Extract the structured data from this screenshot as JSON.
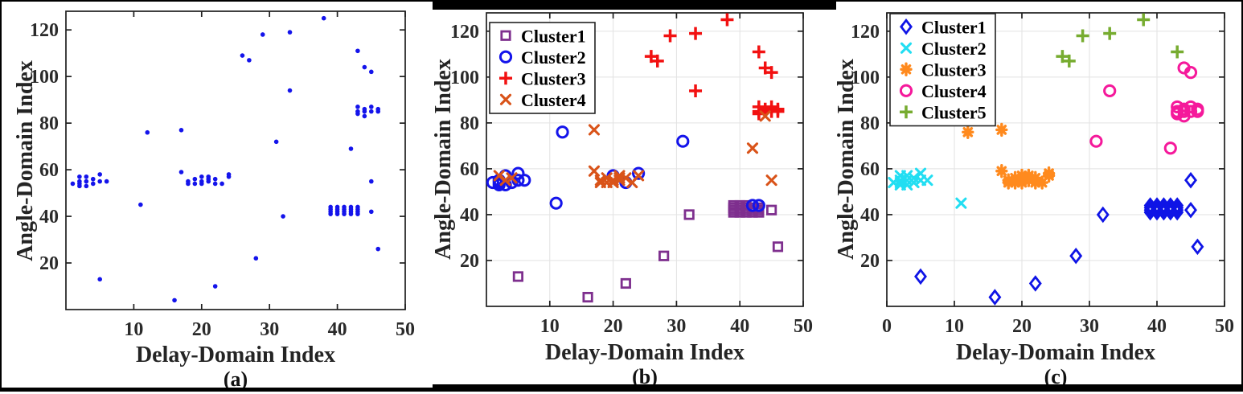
{
  "figure": {
    "xlabel": "Delay-Domain Index",
    "ylabel": "Angle-Domain Index",
    "panel_letters": [
      "(a)",
      "(b)",
      "(c)"
    ],
    "colors": {
      "raw_blue": "#1414EB",
      "b_cluster1_purple": "#7E2F8E",
      "b_cluster2_blue": "#1414EB",
      "b_cluster3_red": "#F21111",
      "b_cluster4_orange": "#D95319",
      "c_cluster1_blue": "#0F14E6",
      "c_cluster2_cyan": "#22DEF2",
      "c_cluster3_orange": "#FF8A1E",
      "c_cluster4_magenta": "#F5199B",
      "c_cluster5_green": "#77AC30",
      "grid": "#E2E2E2",
      "frame": "#1F1F1F"
    }
  },
  "chart_data": [
    {
      "type": "scatter",
      "title": "(a)",
      "xlabel": "Delay-Domain Index",
      "ylabel": "Angle-Domain Index",
      "xlim": [
        0,
        50
      ],
      "ylim": [
        0,
        128
      ],
      "x_ticks": [
        10,
        20,
        30,
        40,
        50
      ],
      "y_ticks": [
        20,
        40,
        60,
        80,
        100,
        120
      ],
      "grid": false,
      "legend": null,
      "series": [
        {
          "name": "raw-points",
          "marker": "dot",
          "color": "#1414EB",
          "points": [
            [
              1,
              54
            ],
            [
              2,
              57
            ],
            [
              2,
              55
            ],
            [
              2,
              54
            ],
            [
              2,
              53
            ],
            [
              3,
              57
            ],
            [
              3,
              55
            ],
            [
              3,
              53
            ],
            [
              4,
              56
            ],
            [
              4,
              54
            ],
            [
              5,
              58
            ],
            [
              5,
              55
            ],
            [
              6,
              55
            ],
            [
              5,
              13
            ],
            [
              11,
              45
            ],
            [
              12,
              76
            ],
            [
              16,
              4
            ],
            [
              17,
              77
            ],
            [
              17,
              59
            ],
            [
              18,
              55
            ],
            [
              18,
              54
            ],
            [
              19,
              56
            ],
            [
              19,
              54
            ],
            [
              20,
              57
            ],
            [
              20,
              55
            ],
            [
              20,
              54
            ],
            [
              21,
              57
            ],
            [
              21,
              56
            ],
            [
              21,
              55
            ],
            [
              22,
              56
            ],
            [
              22,
              54
            ],
            [
              23,
              54
            ],
            [
              24,
              58
            ],
            [
              24,
              57
            ],
            [
              22,
              10
            ],
            [
              28,
              22
            ],
            [
              26,
              109
            ],
            [
              27,
              107
            ],
            [
              29,
              118
            ],
            [
              31,
              72
            ],
            [
              32,
              40
            ],
            [
              33,
              119
            ],
            [
              33,
              94
            ],
            [
              38,
              125
            ],
            [
              39,
              41
            ],
            [
              39,
              42
            ],
            [
              39,
              43
            ],
            [
              39,
              44
            ],
            [
              40,
              41
            ],
            [
              40,
              42
            ],
            [
              40,
              43
            ],
            [
              40,
              44
            ],
            [
              41,
              41
            ],
            [
              41,
              42
            ],
            [
              41,
              43
            ],
            [
              41,
              44
            ],
            [
              42,
              41
            ],
            [
              42,
              42
            ],
            [
              42,
              43
            ],
            [
              42,
              44
            ],
            [
              43,
              41
            ],
            [
              43,
              42
            ],
            [
              43,
              43
            ],
            [
              43,
              44
            ],
            [
              42,
              69
            ],
            [
              43,
              111
            ],
            [
              44,
              104
            ],
            [
              45,
              102
            ],
            [
              45,
              55
            ],
            [
              45,
              42
            ],
            [
              46,
              26
            ],
            [
              43,
              87
            ],
            [
              43,
              85
            ],
            [
              43,
              84
            ],
            [
              44,
              86
            ],
            [
              44,
              85
            ],
            [
              44,
              83
            ],
            [
              45,
              87
            ],
            [
              45,
              85
            ],
            [
              46,
              86
            ],
            [
              46,
              85
            ]
          ]
        }
      ]
    },
    {
      "type": "scatter",
      "title": "(b)",
      "xlabel": "Delay-Domain Index",
      "ylabel": "Angle-Domain Index",
      "xlim": [
        0,
        50
      ],
      "ylim": [
        0,
        128
      ],
      "x_ticks": [
        10,
        20,
        30,
        40,
        50
      ],
      "y_ticks": [
        20,
        40,
        60,
        80,
        100,
        120
      ],
      "grid": true,
      "legend": "top-left",
      "series": [
        {
          "name": "Cluster1",
          "marker": "square",
          "color": "#7E2F8E",
          "points": [
            [
              5,
              13
            ],
            [
              16,
              4
            ],
            [
              22,
              10
            ],
            [
              28,
              22
            ],
            [
              32,
              40
            ],
            [
              39,
              41
            ],
            [
              39,
              42
            ],
            [
              39,
              43
            ],
            [
              39,
              44
            ],
            [
              40,
              41
            ],
            [
              40,
              42
            ],
            [
              40,
              43
            ],
            [
              40,
              44
            ],
            [
              41,
              41
            ],
            [
              41,
              42
            ],
            [
              41,
              43
            ],
            [
              41,
              44
            ],
            [
              42,
              41
            ],
            [
              42,
              42
            ],
            [
              42,
              43
            ],
            [
              43,
              41
            ],
            [
              43,
              42
            ],
            [
              43,
              43
            ],
            [
              45,
              42
            ],
            [
              46,
              26
            ]
          ]
        },
        {
          "name": "Cluster2",
          "marker": "circle",
          "color": "#1414EB",
          "points": [
            [
              1,
              54
            ],
            [
              2,
              55
            ],
            [
              2,
              54
            ],
            [
              2,
              53
            ],
            [
              3,
              57
            ],
            [
              3,
              53
            ],
            [
              4,
              54
            ],
            [
              5,
              58
            ],
            [
              5,
              55
            ],
            [
              6,
              55
            ],
            [
              11,
              45
            ],
            [
              12,
              76
            ],
            [
              20,
              57
            ],
            [
              22,
              54
            ],
            [
              24,
              58
            ],
            [
              31,
              72
            ],
            [
              42,
              44
            ],
            [
              43,
              44
            ]
          ]
        },
        {
          "name": "Cluster3",
          "marker": "plus",
          "color": "#F21111",
          "points": [
            [
              26,
              109
            ],
            [
              27,
              107
            ],
            [
              29,
              118
            ],
            [
              33,
              119
            ],
            [
              33,
              94
            ],
            [
              38,
              125
            ],
            [
              43,
              111
            ],
            [
              44,
              104
            ],
            [
              45,
              102
            ],
            [
              43,
              87
            ],
            [
              43,
              85
            ],
            [
              43,
              84
            ],
            [
              44,
              86
            ],
            [
              44,
              85
            ],
            [
              45,
              87
            ],
            [
              45,
              85
            ],
            [
              46,
              86
            ],
            [
              46,
              85
            ]
          ]
        },
        {
          "name": "Cluster4",
          "marker": "x",
          "color": "#D95319",
          "points": [
            [
              2,
              57
            ],
            [
              3,
              55
            ],
            [
              4,
              56
            ],
            [
              17,
              77
            ],
            [
              17,
              59
            ],
            [
              18,
              55
            ],
            [
              18,
              54
            ],
            [
              19,
              56
            ],
            [
              19,
              54
            ],
            [
              20,
              55
            ],
            [
              20,
              54
            ],
            [
              21,
              57
            ],
            [
              21,
              56
            ],
            [
              21,
              55
            ],
            [
              22,
              56
            ],
            [
              23,
              54
            ],
            [
              24,
              57
            ],
            [
              42,
              69
            ],
            [
              45,
              55
            ],
            [
              44,
              83
            ]
          ]
        }
      ]
    },
    {
      "type": "scatter",
      "title": "(c)",
      "xlabel": "Delay-Domain Index",
      "ylabel": "Angle-Domain Index",
      "xlim": [
        0,
        50
      ],
      "ylim": [
        0,
        128
      ],
      "x_ticks": [
        0,
        10,
        20,
        30,
        40,
        50
      ],
      "y_ticks": [
        20,
        40,
        60,
        80,
        100,
        120
      ],
      "grid": true,
      "legend": "top-left",
      "series": [
        {
          "name": "Cluster1",
          "marker": "diamond",
          "color": "#0F14E6",
          "points": [
            [
              5,
              13
            ],
            [
              16,
              4
            ],
            [
              22,
              10
            ],
            [
              28,
              22
            ],
            [
              32,
              40
            ],
            [
              39,
              41
            ],
            [
              39,
              42
            ],
            [
              39,
              43
            ],
            [
              39,
              44
            ],
            [
              40,
              41
            ],
            [
              40,
              42
            ],
            [
              40,
              43
            ],
            [
              40,
              44
            ],
            [
              41,
              41
            ],
            [
              41,
              42
            ],
            [
              41,
              43
            ],
            [
              41,
              44
            ],
            [
              42,
              41
            ],
            [
              42,
              42
            ],
            [
              42,
              43
            ],
            [
              42,
              44
            ],
            [
              43,
              41
            ],
            [
              43,
              42
            ],
            [
              43,
              43
            ],
            [
              43,
              44
            ],
            [
              45,
              55
            ],
            [
              45,
              42
            ],
            [
              46,
              26
            ]
          ]
        },
        {
          "name": "Cluster2",
          "marker": "x",
          "color": "#22DEF2",
          "points": [
            [
              1,
              54
            ],
            [
              2,
              57
            ],
            [
              2,
              55
            ],
            [
              2,
              54
            ],
            [
              2,
              53
            ],
            [
              3,
              57
            ],
            [
              3,
              55
            ],
            [
              3,
              53
            ],
            [
              4,
              56
            ],
            [
              4,
              54
            ],
            [
              5,
              58
            ],
            [
              5,
              55
            ],
            [
              6,
              55
            ],
            [
              11,
              45
            ]
          ]
        },
        {
          "name": "Cluster3",
          "marker": "asterisk",
          "color": "#FF8A1E",
          "points": [
            [
              12,
              76
            ],
            [
              17,
              77
            ],
            [
              17,
              59
            ],
            [
              18,
              55
            ],
            [
              18,
              54
            ],
            [
              19,
              56
            ],
            [
              19,
              54
            ],
            [
              20,
              57
            ],
            [
              20,
              55
            ],
            [
              20,
              54
            ],
            [
              21,
              57
            ],
            [
              21,
              56
            ],
            [
              21,
              55
            ],
            [
              22,
              56
            ],
            [
              22,
              54
            ],
            [
              23,
              54
            ],
            [
              24,
              58
            ],
            [
              24,
              57
            ]
          ]
        },
        {
          "name": "Cluster4",
          "marker": "circle",
          "color": "#F5199B",
          "points": [
            [
              31,
              72
            ],
            [
              33,
              94
            ],
            [
              42,
              69
            ],
            [
              44,
              104
            ],
            [
              45,
              102
            ],
            [
              43,
              87
            ],
            [
              43,
              85
            ],
            [
              43,
              84
            ],
            [
              44,
              86
            ],
            [
              44,
              85
            ],
            [
              44,
              83
            ],
            [
              45,
              87
            ],
            [
              45,
              85
            ],
            [
              46,
              86
            ],
            [
              46,
              85
            ]
          ]
        },
        {
          "name": "Cluster5",
          "marker": "plus",
          "color": "#77AC30",
          "points": [
            [
              26,
              109
            ],
            [
              27,
              107
            ],
            [
              29,
              118
            ],
            [
              33,
              119
            ],
            [
              38,
              125
            ],
            [
              43,
              111
            ]
          ]
        }
      ]
    }
  ]
}
